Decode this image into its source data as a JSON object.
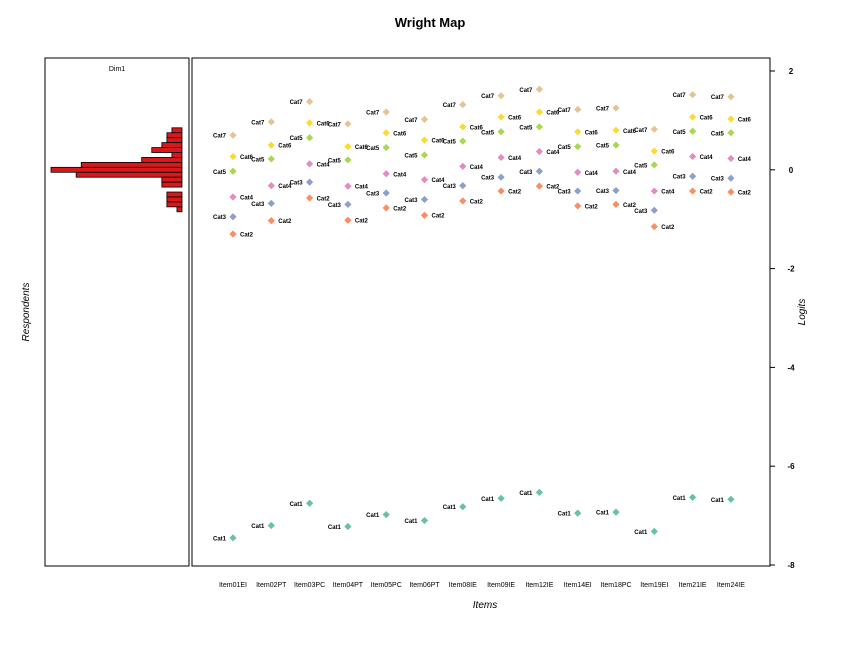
{
  "chart_data": {
    "type": "scatter",
    "title": "Wright Map",
    "left_panel": {
      "type": "histogram",
      "label": "Dim1",
      "ylabel": "Respondents",
      "color": "#d7191c",
      "bins": [
        {
          "logit": 0.8,
          "count": 0.02
        },
        {
          "logit": 0.7,
          "count": 0.03
        },
        {
          "logit": 0.6,
          "count": 0.03
        },
        {
          "logit": 0.5,
          "count": 0.04
        },
        {
          "logit": 0.4,
          "count": 0.06
        },
        {
          "logit": 0.3,
          "count": 0.02
        },
        {
          "logit": 0.2,
          "count": 0.08
        },
        {
          "logit": 0.1,
          "count": 0.2
        },
        {
          "logit": 0.0,
          "count": 0.26
        },
        {
          "logit": -0.1,
          "count": 0.21
        },
        {
          "logit": -0.2,
          "count": 0.04
        },
        {
          "logit": -0.3,
          "count": 0.04
        },
        {
          "logit": -0.5,
          "count": 0.03
        },
        {
          "logit": -0.6,
          "count": 0.03
        },
        {
          "logit": -0.7,
          "count": 0.03
        },
        {
          "logit": -0.8,
          "count": 0.01
        }
      ]
    },
    "xlabel": "Items",
    "ylabel": "Logits",
    "ylim": [
      -8,
      2
    ],
    "yticks": [
      2,
      0,
      -2,
      -4,
      -6,
      -8
    ],
    "grid": false,
    "categories": [
      "Item01EI",
      "Item02PT",
      "Item03PC",
      "Item04PT",
      "Item05PC",
      "Item06PT",
      "Item08IE",
      "Item09IE",
      "Item12IE",
      "Item14EI",
      "Item18PC",
      "Item19EI",
      "Item21IE",
      "Item24IE"
    ],
    "series": [
      {
        "name": "Cat1",
        "color": "#66c2a5",
        "values": [
          -7.45,
          -7.2,
          -6.75,
          -7.22,
          -6.98,
          -7.1,
          -6.82,
          -6.65,
          -6.53,
          -6.95,
          -6.93,
          -7.32,
          -6.63,
          -6.67
        ]
      },
      {
        "name": "Cat2",
        "color": "#fc8d62",
        "values": [
          -1.3,
          -1.03,
          -0.57,
          -1.02,
          -0.77,
          -0.92,
          -0.63,
          -0.43,
          -0.33,
          -0.73,
          -0.7,
          -1.15,
          -0.43,
          -0.45
        ]
      },
      {
        "name": "Cat3",
        "color": "#8da0cb",
        "values": [
          -0.95,
          -0.68,
          -0.25,
          -0.7,
          -0.47,
          -0.6,
          -0.32,
          -0.15,
          -0.03,
          -0.43,
          -0.42,
          -0.82,
          -0.13,
          -0.17
        ]
      },
      {
        "name": "Cat4",
        "color": "#e78ac3",
        "values": [
          -0.55,
          -0.32,
          0.12,
          -0.33,
          -0.08,
          -0.2,
          0.07,
          0.25,
          0.37,
          -0.05,
          -0.03,
          -0.43,
          0.27,
          0.23
        ]
      },
      {
        "name": "Cat5",
        "color": "#a6d854",
        "values": [
          -0.03,
          0.22,
          0.65,
          0.2,
          0.45,
          0.3,
          0.58,
          0.77,
          0.87,
          0.47,
          0.5,
          0.1,
          0.78,
          0.75
        ]
      },
      {
        "name": "Cat6",
        "color": "#ffd92f",
        "values": [
          0.27,
          0.5,
          0.95,
          0.47,
          0.75,
          0.6,
          0.87,
          1.07,
          1.17,
          0.77,
          0.8,
          0.38,
          1.07,
          1.03
        ]
      },
      {
        "name": "Cat7",
        "color": "#e5c494",
        "values": [
          0.7,
          0.97,
          1.38,
          0.93,
          1.17,
          1.02,
          1.32,
          1.5,
          1.63,
          1.22,
          1.25,
          0.82,
          1.52,
          1.48
        ]
      }
    ]
  }
}
